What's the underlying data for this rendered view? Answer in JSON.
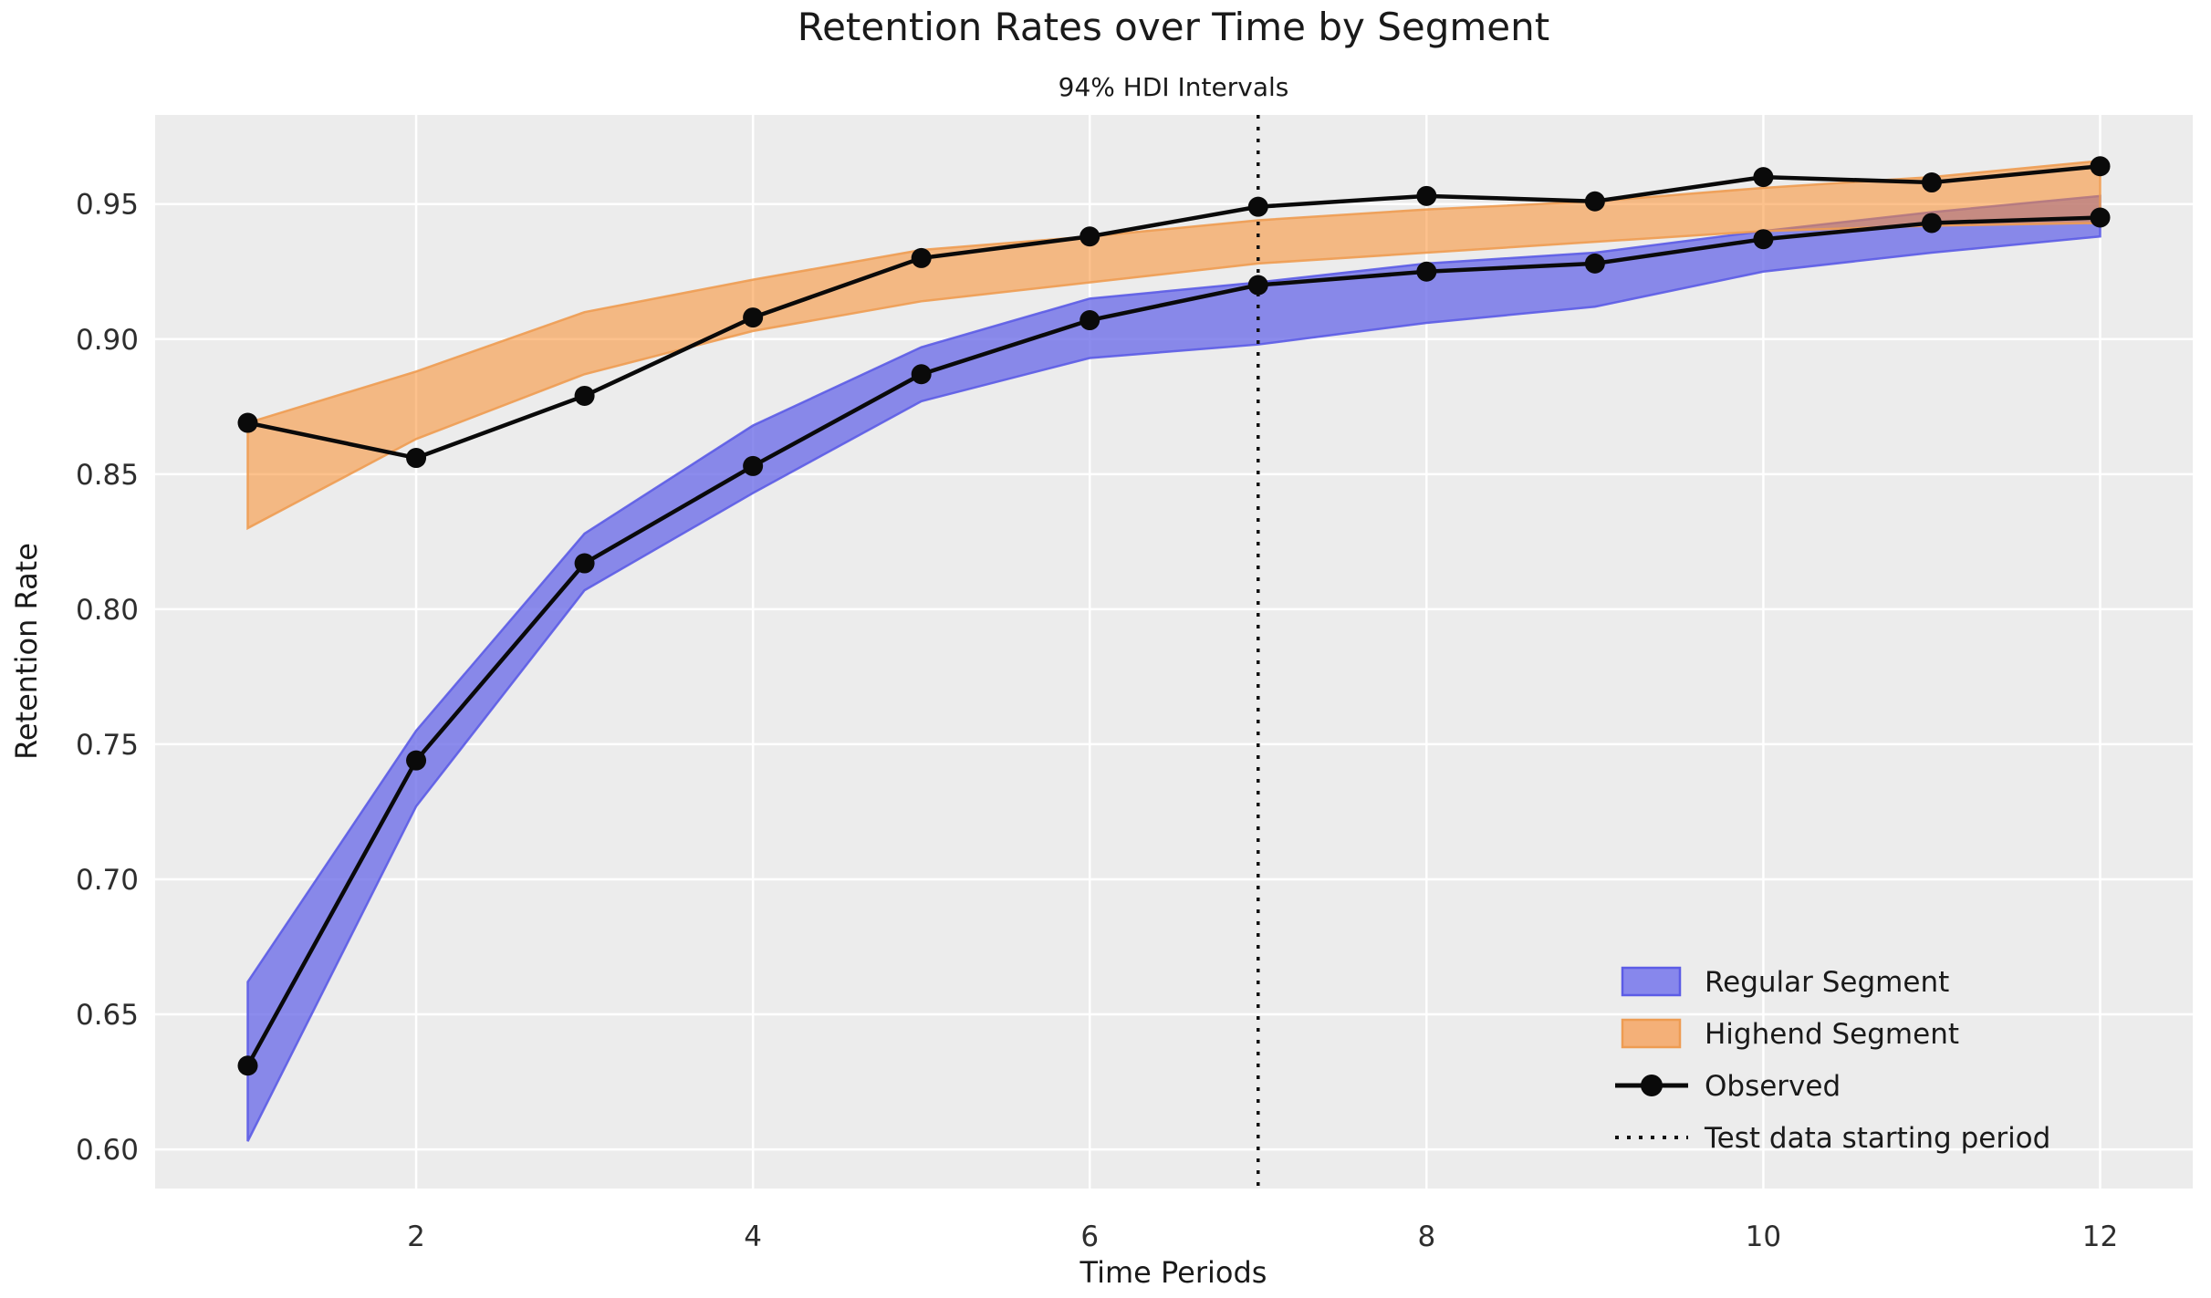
{
  "chart_data": {
    "type": "line",
    "title": "Retention Rates over Time by Segment",
    "subtitle": "94% HDI Intervals",
    "xlabel": "Time Periods",
    "ylabel": "Retention Rate",
    "x": [
      1,
      2,
      3,
      4,
      5,
      6,
      7,
      8,
      9,
      10,
      11,
      12
    ],
    "x_ticks": [
      2,
      4,
      6,
      8,
      10,
      12
    ],
    "y_ticks": [
      0.6,
      0.65,
      0.7,
      0.75,
      0.8,
      0.85,
      0.9,
      0.95
    ],
    "xlim": [
      0.45,
      12.55
    ],
    "ylim": [
      0.5855,
      0.983
    ],
    "grid": true,
    "test_period_start": 7,
    "series": [
      {
        "name": "Regular Segment",
        "kind": "hdi-band",
        "lower": [
          0.603,
          0.727,
          0.807,
          0.843,
          0.877,
          0.893,
          0.898,
          0.906,
          0.912,
          0.925,
          0.932,
          0.938
        ],
        "upper": [
          0.662,
          0.755,
          0.828,
          0.868,
          0.897,
          0.915,
          0.921,
          0.928,
          0.932,
          0.94,
          0.947,
          0.953
        ],
        "fill": "#6B6BE8",
        "fill_opacity": 0.78,
        "edge": "#5C5CE6"
      },
      {
        "name": "Highend Segment",
        "kind": "hdi-band",
        "lower": [
          0.83,
          0.863,
          0.887,
          0.903,
          0.914,
          0.921,
          0.928,
          0.932,
          0.936,
          0.94,
          0.942,
          0.943
        ],
        "upper": [
          0.869,
          0.888,
          0.91,
          0.922,
          0.933,
          0.938,
          0.944,
          0.948,
          0.951,
          0.956,
          0.96,
          0.966
        ],
        "fill": "#FA8E2E",
        "fill_opacity": 0.55,
        "edge": "#EE9C52"
      },
      {
        "name": "Observed Regular",
        "kind": "line",
        "values": [
          0.631,
          0.744,
          0.817,
          0.853,
          0.887,
          0.907,
          0.92,
          0.925,
          0.928,
          0.937,
          0.943,
          0.945
        ],
        "color": "#0a0a0a"
      },
      {
        "name": "Observed Highend",
        "kind": "line",
        "values": [
          0.869,
          0.856,
          0.879,
          0.908,
          0.93,
          0.938,
          0.949,
          0.953,
          0.951,
          0.96,
          0.958,
          0.964
        ],
        "color": "#0a0a0a"
      }
    ],
    "legend": {
      "position": "lower right",
      "items": [
        {
          "label": "Regular Segment",
          "swatch": "band-blue"
        },
        {
          "label": "Highend Segment",
          "swatch": "band-orange"
        },
        {
          "label": "Observed",
          "swatch": "line-marker"
        },
        {
          "label": "Test data starting period",
          "swatch": "dotted-line"
        }
      ]
    },
    "colors": {
      "figure_background": "#ffffff",
      "plot_background": "#ECECEC",
      "gridline": "#ffffff",
      "observed_line": "#0a0a0a",
      "test_line": "#111111",
      "legend_blue_fill": "#8787EC",
      "legend_orange_fill": "#F4B078"
    }
  }
}
